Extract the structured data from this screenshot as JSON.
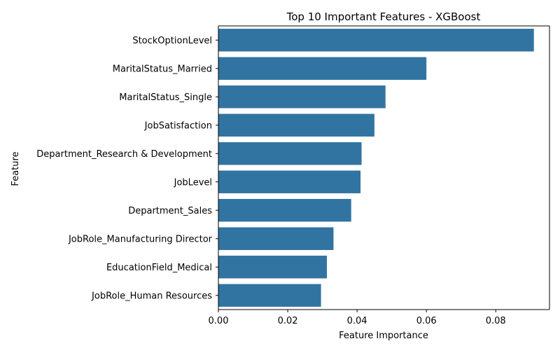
{
  "chart_data": {
    "type": "bar",
    "orientation": "horizontal",
    "title": "Top 10 Important Features - XGBoost",
    "xlabel": "Feature Importance",
    "ylabel": "Feature",
    "xlim": [
      0,
      0.0955
    ],
    "xticks": [
      0,
      0.02,
      0.04,
      0.06,
      0.08
    ],
    "xtick_labels": [
      "0.00",
      "0.02",
      "0.04",
      "0.06",
      "0.08"
    ],
    "grid": false,
    "bar_color": "#3274a1",
    "categories": [
      "StockOptionLevel",
      "MaritalStatus_Married",
      "MaritalStatus_Single",
      "JobSatisfaction",
      "Department_Research & Development",
      "JobLevel",
      "Department_Sales",
      "JobRole_Manufacturing Director",
      "EducationField_Medical",
      "JobRole_Human Resources"
    ],
    "values": [
      0.091,
      0.06,
      0.0482,
      0.045,
      0.0413,
      0.041,
      0.0383,
      0.0332,
      0.0313,
      0.0296
    ]
  }
}
